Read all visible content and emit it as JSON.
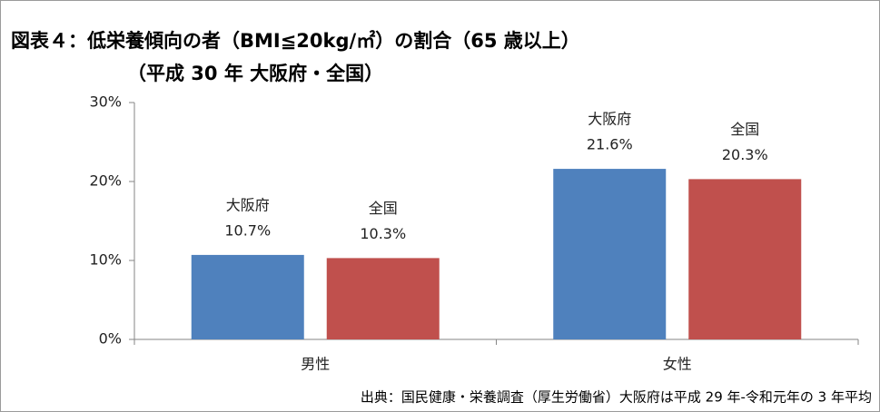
{
  "chart_data": {
    "type": "bar",
    "title": "図表４：低栄養傾向の者（BMI≦20kg/㎡）の割合（65 歳以上）",
    "subtitle": "（平成 30 年 大阪府・全国）",
    "source": "出典：国民健康・栄養調査（厚生労働省）大阪府は平成 29 年-令和元年の 3 年平均",
    "categories": [
      "男性",
      "女性"
    ],
    "series": [
      {
        "name": "大阪府",
        "color": "#4f81bd",
        "values": [
          10.7,
          21.6
        ],
        "value_labels": [
          "10.7%",
          "21.6%"
        ]
      },
      {
        "name": "全国",
        "color": "#c0504d",
        "values": [
          10.3,
          20.3
        ],
        "value_labels": [
          "10.3%",
          "20.3%"
        ]
      }
    ],
    "ylim": [
      0,
      30
    ],
    "yticks": [
      {
        "value": 0,
        "label": "0%"
      },
      {
        "value": 10,
        "label": "10%"
      },
      {
        "value": 20,
        "label": "20%"
      },
      {
        "value": 30,
        "label": "30%"
      }
    ],
    "grid": false
  }
}
